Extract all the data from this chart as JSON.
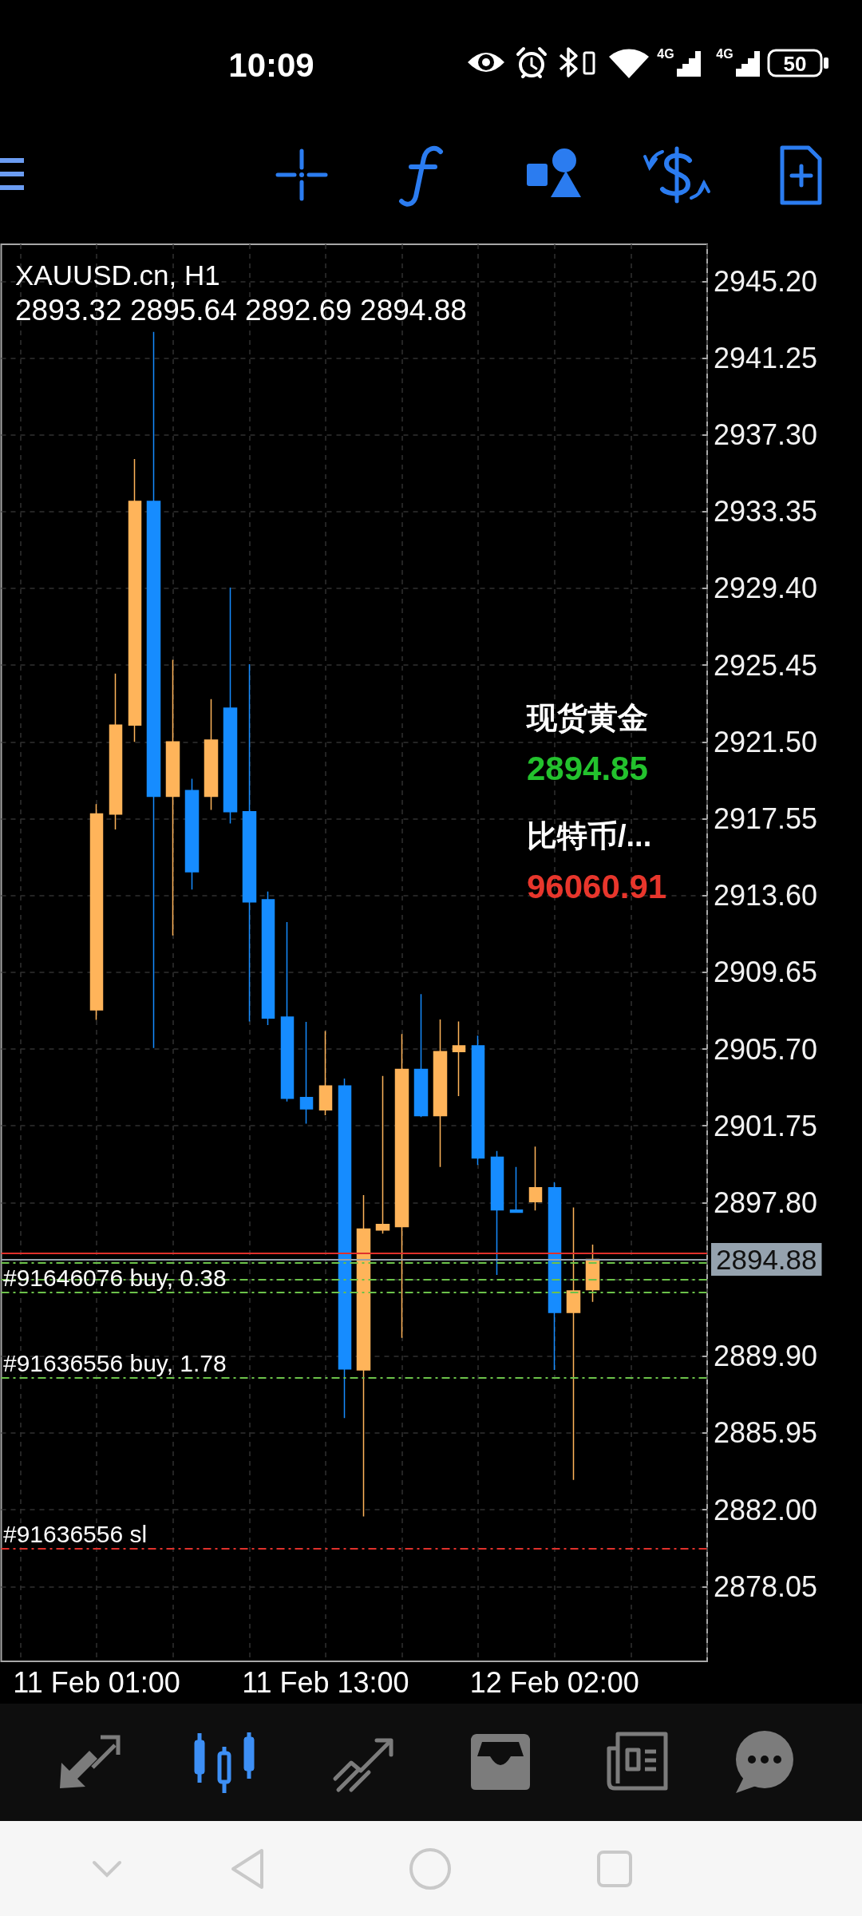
{
  "chart_data": {
    "type": "candlestick",
    "title": "XAUUSD.cn, H1",
    "subtitle": "2893.32 2895.64 2892.69 2894.88",
    "categories": [
      "11 Feb 01:00",
      null,
      null,
      null,
      null,
      null,
      null,
      null,
      null,
      null,
      null,
      null,
      "11 Feb 13:00",
      null,
      null,
      null,
      null,
      null,
      null,
      null,
      null,
      null,
      null,
      null,
      "12 Feb 02:00",
      null,
      null
    ],
    "ohlc": [
      [
        2907.71,
        2918.3,
        2907.2,
        2917.8
      ],
      [
        2917.79,
        2925.01,
        2917.0,
        2922.37
      ],
      [
        2922.37,
        2936.05,
        2921.5,
        2933.88
      ],
      [
        2933.88,
        2942.59,
        2905.75,
        2918.7
      ],
      [
        2918.7,
        2925.72,
        2911.54,
        2921.5
      ],
      [
        2919.0,
        2919.6,
        2913.9,
        2914.82
      ],
      [
        2918.7,
        2923.7,
        2918.0,
        2921.6
      ],
      [
        2923.24,
        2929.44,
        2917.3,
        2917.91
      ],
      [
        2917.91,
        2925.5,
        2907.12,
        2913.27
      ],
      [
        2913.38,
        2913.8,
        2906.93,
        2907.29
      ],
      [
        2907.34,
        2912.23,
        2903.0,
        2903.16
      ],
      [
        2903.21,
        2907.1,
        2901.86,
        2902.62
      ],
      [
        2902.57,
        2906.63,
        2902.29,
        2903.8
      ],
      [
        2903.8,
        2904.18,
        2886.72,
        2889.24
      ],
      [
        2889.19,
        2898.19,
        2881.65,
        2896.44
      ],
      [
        2896.39,
        2904.32,
        2896.2,
        2896.68
      ],
      [
        2896.56,
        2906.47,
        2890.84,
        2904.65
      ],
      [
        2904.65,
        2908.52,
        2902.2,
        2902.27
      ],
      [
        2902.27,
        2907.22,
        2899.63,
        2905.57
      ],
      [
        2905.57,
        2907.12,
        2903.28,
        2905.87
      ],
      [
        2905.87,
        2906.39,
        2899.74,
        2900.1
      ],
      [
        2900.14,
        2900.45,
        2894.08,
        2897.43
      ],
      [
        2897.42,
        2899.63,
        2897.3,
        2897.3
      ],
      [
        2897.85,
        2900.68,
        2897.39,
        2898.56
      ],
      [
        2898.56,
        2898.85,
        2889.19,
        2892.15
      ],
      [
        2892.15,
        2897.55,
        2883.53,
        2893.26
      ],
      [
        2893.32,
        2895.64,
        2892.69,
        2894.88
      ]
    ],
    "colors": [
      "#ffb45a",
      "#ffb45a",
      "#ffb45a",
      "#168cff",
      "#ffb45a",
      "#168cff",
      "#ffb45a",
      "#168cff",
      "#168cff",
      "#168cff",
      "#168cff",
      "#168cff",
      "#ffb45a",
      "#168cff",
      "#ffb45a",
      "#ffb45a",
      "#ffb45a",
      "#168cff",
      "#ffb45a",
      "#ffb45a",
      "#168cff",
      "#168cff",
      "#168cff",
      "#ffb45a",
      "#168cff",
      "#ffb45a",
      "#ffb45a"
    ],
    "ylim": [
      2874.2,
      2947.1
    ],
    "yticks": [
      2878.05,
      {
        "value": 2882,
        "label": "2882.00"
      },
      2885.95,
      {
        "value": 2889.9,
        "label": "2889.90"
      },
      {
        "value": 2893.85,
        "label": null
      },
      {
        "value": 2897.8,
        "label": "2897.80"
      },
      2901.75,
      {
        "value": 2905.7,
        "label": "2905.70"
      },
      2909.65,
      {
        "value": 2913.6,
        "label": "2913.60"
      },
      2917.55,
      {
        "value": 2921.5,
        "label": "2921.50"
      },
      2925.45,
      {
        "value": 2929.4,
        "label": "2929.40"
      },
      2933.35,
      {
        "value": 2937.3,
        "label": "2937.30"
      },
      2941.25,
      {
        "value": 2945.2,
        "label": "2945.20"
      }
    ],
    "grid": true,
    "ref_lines": [
      {
        "axis": "y",
        "value": 2895.2,
        "color": "#e0312b",
        "line_style": "solid"
      },
      {
        "axis": "y",
        "value": 2894.88,
        "label": "2894.88",
        "color": "#95a2ae",
        "line_style": "solid"
      },
      {
        "axis": "y",
        "value": 2894.72,
        "color": "#6cc24a",
        "line_style": "dashed"
      },
      {
        "axis": "y",
        "value": 2893.84,
        "color": "#6cc24a",
        "line_style": "dashed"
      },
      {
        "axis": "y",
        "value": 2893.19,
        "label": "#91646076 buy, 0.38",
        "color": "#6cc24a",
        "line_style": "dashed"
      },
      {
        "axis": "y",
        "value": 2888.79,
        "label": "#91636556 buy, 1.78",
        "color": "#6cc24a",
        "line_style": "dashed"
      },
      {
        "axis": "y",
        "value": 2880.0,
        "label": "#91636556 sl",
        "color": "#e0312b",
        "line_style": "dashed"
      }
    ],
    "annotations": [
      "10:09",
      "4G",
      "4G",
      "50",
      "现货黄金",
      "2894.85",
      "比特币/...",
      "96060.91"
    ]
  }
}
